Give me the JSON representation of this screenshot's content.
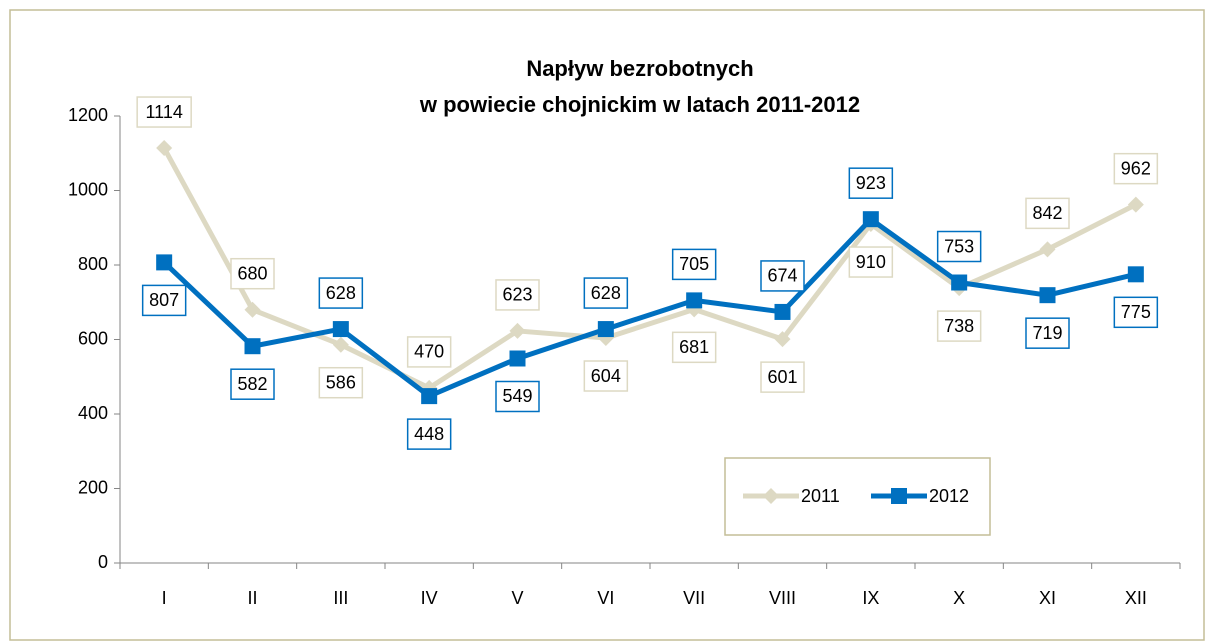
{
  "chart_data": {
    "type": "line",
    "title": [
      "Napływ bezrobotnych",
      "w powiecie chojnickim w latach 2011-2012"
    ],
    "categories": [
      "I",
      "II",
      "III",
      "IV",
      "V",
      "VI",
      "VII",
      "VIII",
      "IX",
      "X",
      "XI",
      "XII"
    ],
    "series": [
      {
        "name": "2011",
        "color": "#ddd9c3",
        "marker": "diamond",
        "values": [
          1114,
          680,
          586,
          470,
          623,
          604,
          681,
          601,
          910,
          738,
          842,
          962
        ]
      },
      {
        "name": "2012",
        "color": "#0070c0",
        "marker": "square",
        "values": [
          807,
          582,
          628,
          448,
          549,
          628,
          705,
          674,
          923,
          753,
          719,
          775
        ]
      }
    ],
    "ylim": [
      0,
      1200
    ],
    "yticks": [
      0,
      200,
      400,
      600,
      800,
      1000,
      1200
    ],
    "grid": false,
    "legend": "lower right"
  }
}
